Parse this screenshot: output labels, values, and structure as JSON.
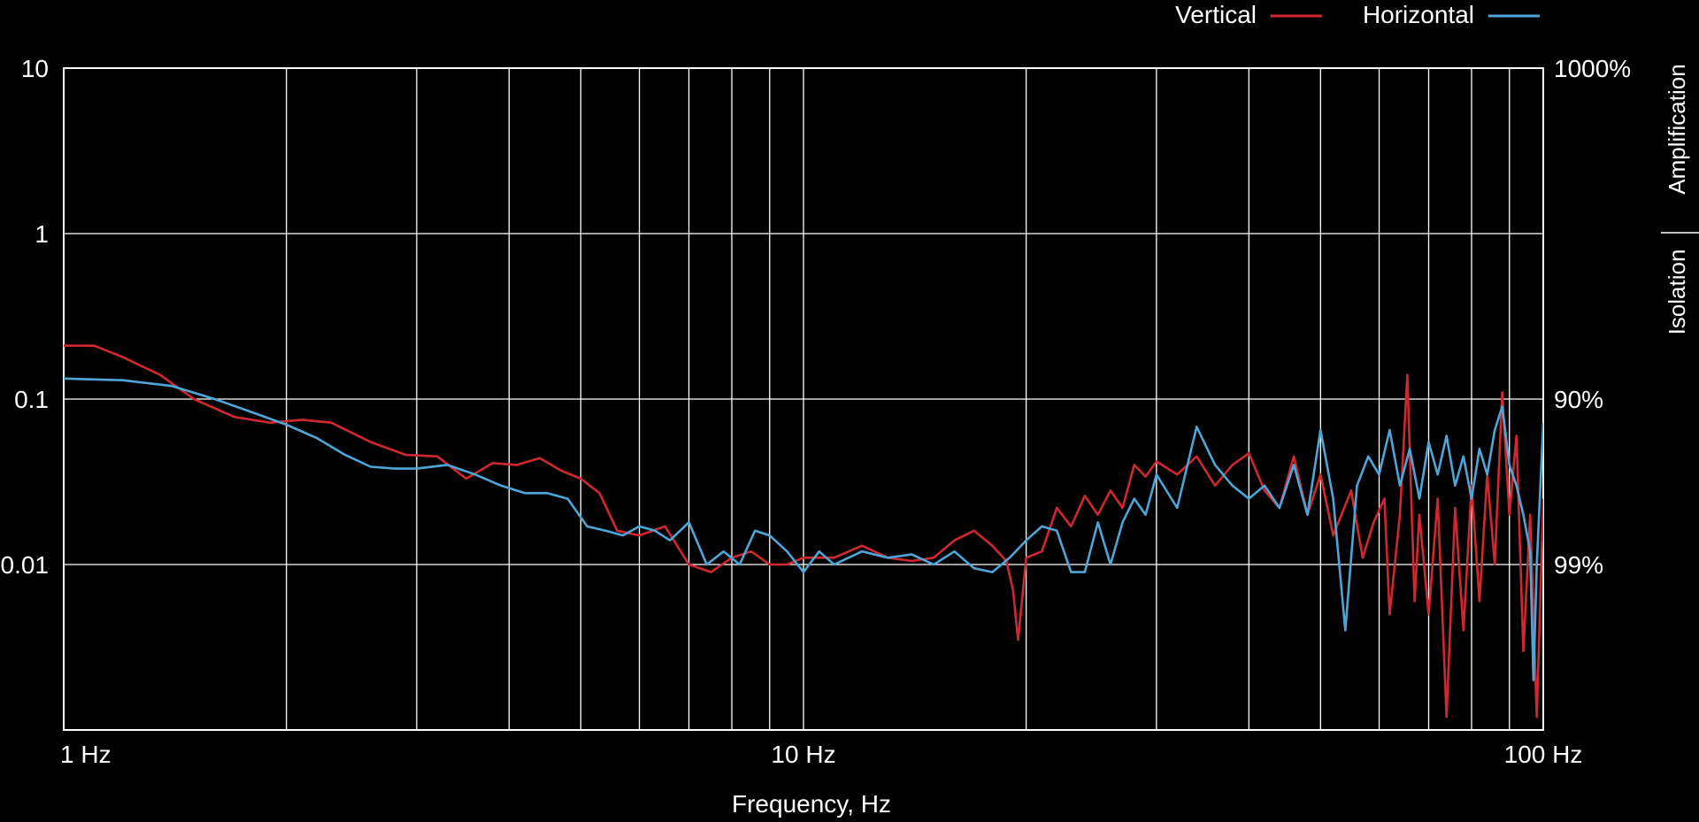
{
  "chart_data": {
    "type": "line",
    "xlabel": "Frequency, Hz",
    "x_scale": "log",
    "y_scale": "log",
    "xlim": [
      1,
      100
    ],
    "ylim": [
      0.001,
      10
    ],
    "grid": true,
    "legend_position": "top-right",
    "x_ticks": [
      {
        "value": 1,
        "label": "1 Hz"
      },
      {
        "value": 10,
        "label": "10 Hz"
      },
      {
        "value": 100,
        "label": "100 Hz"
      }
    ],
    "y_ticks_left": [
      {
        "value": 10,
        "label": "10"
      },
      {
        "value": 1,
        "label": "1"
      },
      {
        "value": 0.1,
        "label": "0.1"
      },
      {
        "value": 0.01,
        "label": "0.01"
      }
    ],
    "y_ticks_right": [
      {
        "value": 10,
        "label": "1000%"
      },
      {
        "value": 0.1,
        "label": "90%"
      },
      {
        "value": 0.01,
        "label": "99%"
      }
    ],
    "region_labels": {
      "amplification": "Amplification",
      "isolation": "Isolation"
    },
    "colors": {
      "background": "#000000",
      "grid": "#ffffff",
      "axis": "#ffffff",
      "text": "#ffffff"
    },
    "series": [
      {
        "name": "Vertical",
        "color": "#d0282f",
        "points": [
          [
            1.0,
            0.21
          ],
          [
            1.1,
            0.21
          ],
          [
            1.2,
            0.18
          ],
          [
            1.35,
            0.14
          ],
          [
            1.5,
            0.1
          ],
          [
            1.7,
            0.078
          ],
          [
            1.9,
            0.072
          ],
          [
            2.1,
            0.075
          ],
          [
            2.3,
            0.072
          ],
          [
            2.6,
            0.055
          ],
          [
            2.9,
            0.046
          ],
          [
            3.2,
            0.045
          ],
          [
            3.5,
            0.033
          ],
          [
            3.8,
            0.041
          ],
          [
            4.1,
            0.04
          ],
          [
            4.4,
            0.044
          ],
          [
            4.7,
            0.037
          ],
          [
            5.0,
            0.033
          ],
          [
            5.3,
            0.027
          ],
          [
            5.6,
            0.016
          ],
          [
            6.0,
            0.015
          ],
          [
            6.5,
            0.017
          ],
          [
            7.0,
            0.01
          ],
          [
            7.5,
            0.009
          ],
          [
            8.0,
            0.011
          ],
          [
            8.5,
            0.012
          ],
          [
            9.0,
            0.01
          ],
          [
            9.5,
            0.01
          ],
          [
            10.0,
            0.011
          ],
          [
            11,
            0.011
          ],
          [
            12,
            0.013
          ],
          [
            13,
            0.011
          ],
          [
            14,
            0.0105
          ],
          [
            15,
            0.011
          ],
          [
            16,
            0.014
          ],
          [
            17,
            0.016
          ],
          [
            18,
            0.013
          ],
          [
            18.8,
            0.0105
          ],
          [
            19.2,
            0.007
          ],
          [
            19.5,
            0.0035
          ],
          [
            20,
            0.011
          ],
          [
            21,
            0.012
          ],
          [
            22,
            0.022
          ],
          [
            23,
            0.017
          ],
          [
            24,
            0.026
          ],
          [
            25,
            0.02
          ],
          [
            26,
            0.028
          ],
          [
            27,
            0.022
          ],
          [
            28,
            0.04
          ],
          [
            29,
            0.034
          ],
          [
            30,
            0.042
          ],
          [
            32,
            0.035
          ],
          [
            34,
            0.045
          ],
          [
            36,
            0.03
          ],
          [
            38,
            0.04
          ],
          [
            40,
            0.047
          ],
          [
            42,
            0.028
          ],
          [
            44,
            0.022
          ],
          [
            46,
            0.045
          ],
          [
            48,
            0.02
          ],
          [
            50,
            0.035
          ],
          [
            52,
            0.015
          ],
          [
            55,
            0.028
          ],
          [
            57,
            0.011
          ],
          [
            59,
            0.018
          ],
          [
            61,
            0.025
          ],
          [
            62,
            0.005
          ],
          [
            64,
            0.02
          ],
          [
            65.5,
            0.14
          ],
          [
            67,
            0.006
          ],
          [
            68,
            0.02
          ],
          [
            70,
            0.005
          ],
          [
            72,
            0.025
          ],
          [
            74,
            0.0012
          ],
          [
            76,
            0.022
          ],
          [
            78,
            0.004
          ],
          [
            80,
            0.03
          ],
          [
            82,
            0.006
          ],
          [
            84,
            0.035
          ],
          [
            86,
            0.01
          ],
          [
            88,
            0.11
          ],
          [
            90,
            0.02
          ],
          [
            92,
            0.06
          ],
          [
            94,
            0.003
          ],
          [
            96,
            0.02
          ],
          [
            98,
            0.0012
          ],
          [
            100,
            0.025
          ]
        ]
      },
      {
        "name": "Horizontal",
        "color": "#4ea6d8",
        "points": [
          [
            1.0,
            0.133
          ],
          [
            1.2,
            0.13
          ],
          [
            1.4,
            0.12
          ],
          [
            1.6,
            0.1
          ],
          [
            1.8,
            0.083
          ],
          [
            2.0,
            0.07
          ],
          [
            2.2,
            0.058
          ],
          [
            2.4,
            0.046
          ],
          [
            2.6,
            0.039
          ],
          [
            2.8,
            0.038
          ],
          [
            3.0,
            0.038
          ],
          [
            3.3,
            0.04
          ],
          [
            3.6,
            0.035
          ],
          [
            3.9,
            0.03
          ],
          [
            4.2,
            0.027
          ],
          [
            4.5,
            0.027
          ],
          [
            4.8,
            0.025
          ],
          [
            5.1,
            0.017
          ],
          [
            5.4,
            0.016
          ],
          [
            5.7,
            0.015
          ],
          [
            6.0,
            0.017
          ],
          [
            6.3,
            0.016
          ],
          [
            6.6,
            0.014
          ],
          [
            7.0,
            0.018
          ],
          [
            7.4,
            0.01
          ],
          [
            7.8,
            0.012
          ],
          [
            8.2,
            0.01
          ],
          [
            8.6,
            0.016
          ],
          [
            9.0,
            0.015
          ],
          [
            9.5,
            0.012
          ],
          [
            10,
            0.009
          ],
          [
            10.5,
            0.012
          ],
          [
            11,
            0.01
          ],
          [
            12,
            0.012
          ],
          [
            13,
            0.011
          ],
          [
            14,
            0.0115
          ],
          [
            15,
            0.01
          ],
          [
            16,
            0.012
          ],
          [
            17,
            0.0095
          ],
          [
            18,
            0.009
          ],
          [
            19,
            0.011
          ],
          [
            20,
            0.014
          ],
          [
            21,
            0.017
          ],
          [
            22,
            0.016
          ],
          [
            23,
            0.009
          ],
          [
            24,
            0.009
          ],
          [
            25,
            0.018
          ],
          [
            26,
            0.01
          ],
          [
            27,
            0.018
          ],
          [
            28,
            0.025
          ],
          [
            29,
            0.02
          ],
          [
            30,
            0.035
          ],
          [
            32,
            0.022
          ],
          [
            34,
            0.068
          ],
          [
            36,
            0.04
          ],
          [
            38,
            0.03
          ],
          [
            40,
            0.025
          ],
          [
            42,
            0.03
          ],
          [
            44,
            0.022
          ],
          [
            46,
            0.04
          ],
          [
            48,
            0.02
          ],
          [
            50,
            0.065
          ],
          [
            52,
            0.025
          ],
          [
            54,
            0.004
          ],
          [
            56,
            0.03
          ],
          [
            58,
            0.045
          ],
          [
            60,
            0.035
          ],
          [
            62,
            0.065
          ],
          [
            64,
            0.03
          ],
          [
            66,
            0.05
          ],
          [
            68,
            0.025
          ],
          [
            70,
            0.055
          ],
          [
            72,
            0.035
          ],
          [
            74,
            0.06
          ],
          [
            76,
            0.03
          ],
          [
            78,
            0.045
          ],
          [
            80,
            0.025
          ],
          [
            82,
            0.05
          ],
          [
            84,
            0.035
          ],
          [
            86,
            0.065
          ],
          [
            88,
            0.09
          ],
          [
            90,
            0.04
          ],
          [
            92,
            0.03
          ],
          [
            94,
            0.02
          ],
          [
            96,
            0.012
          ],
          [
            97,
            0.002
          ],
          [
            98,
            0.01
          ],
          [
            100,
            0.072
          ]
        ]
      }
    ]
  }
}
